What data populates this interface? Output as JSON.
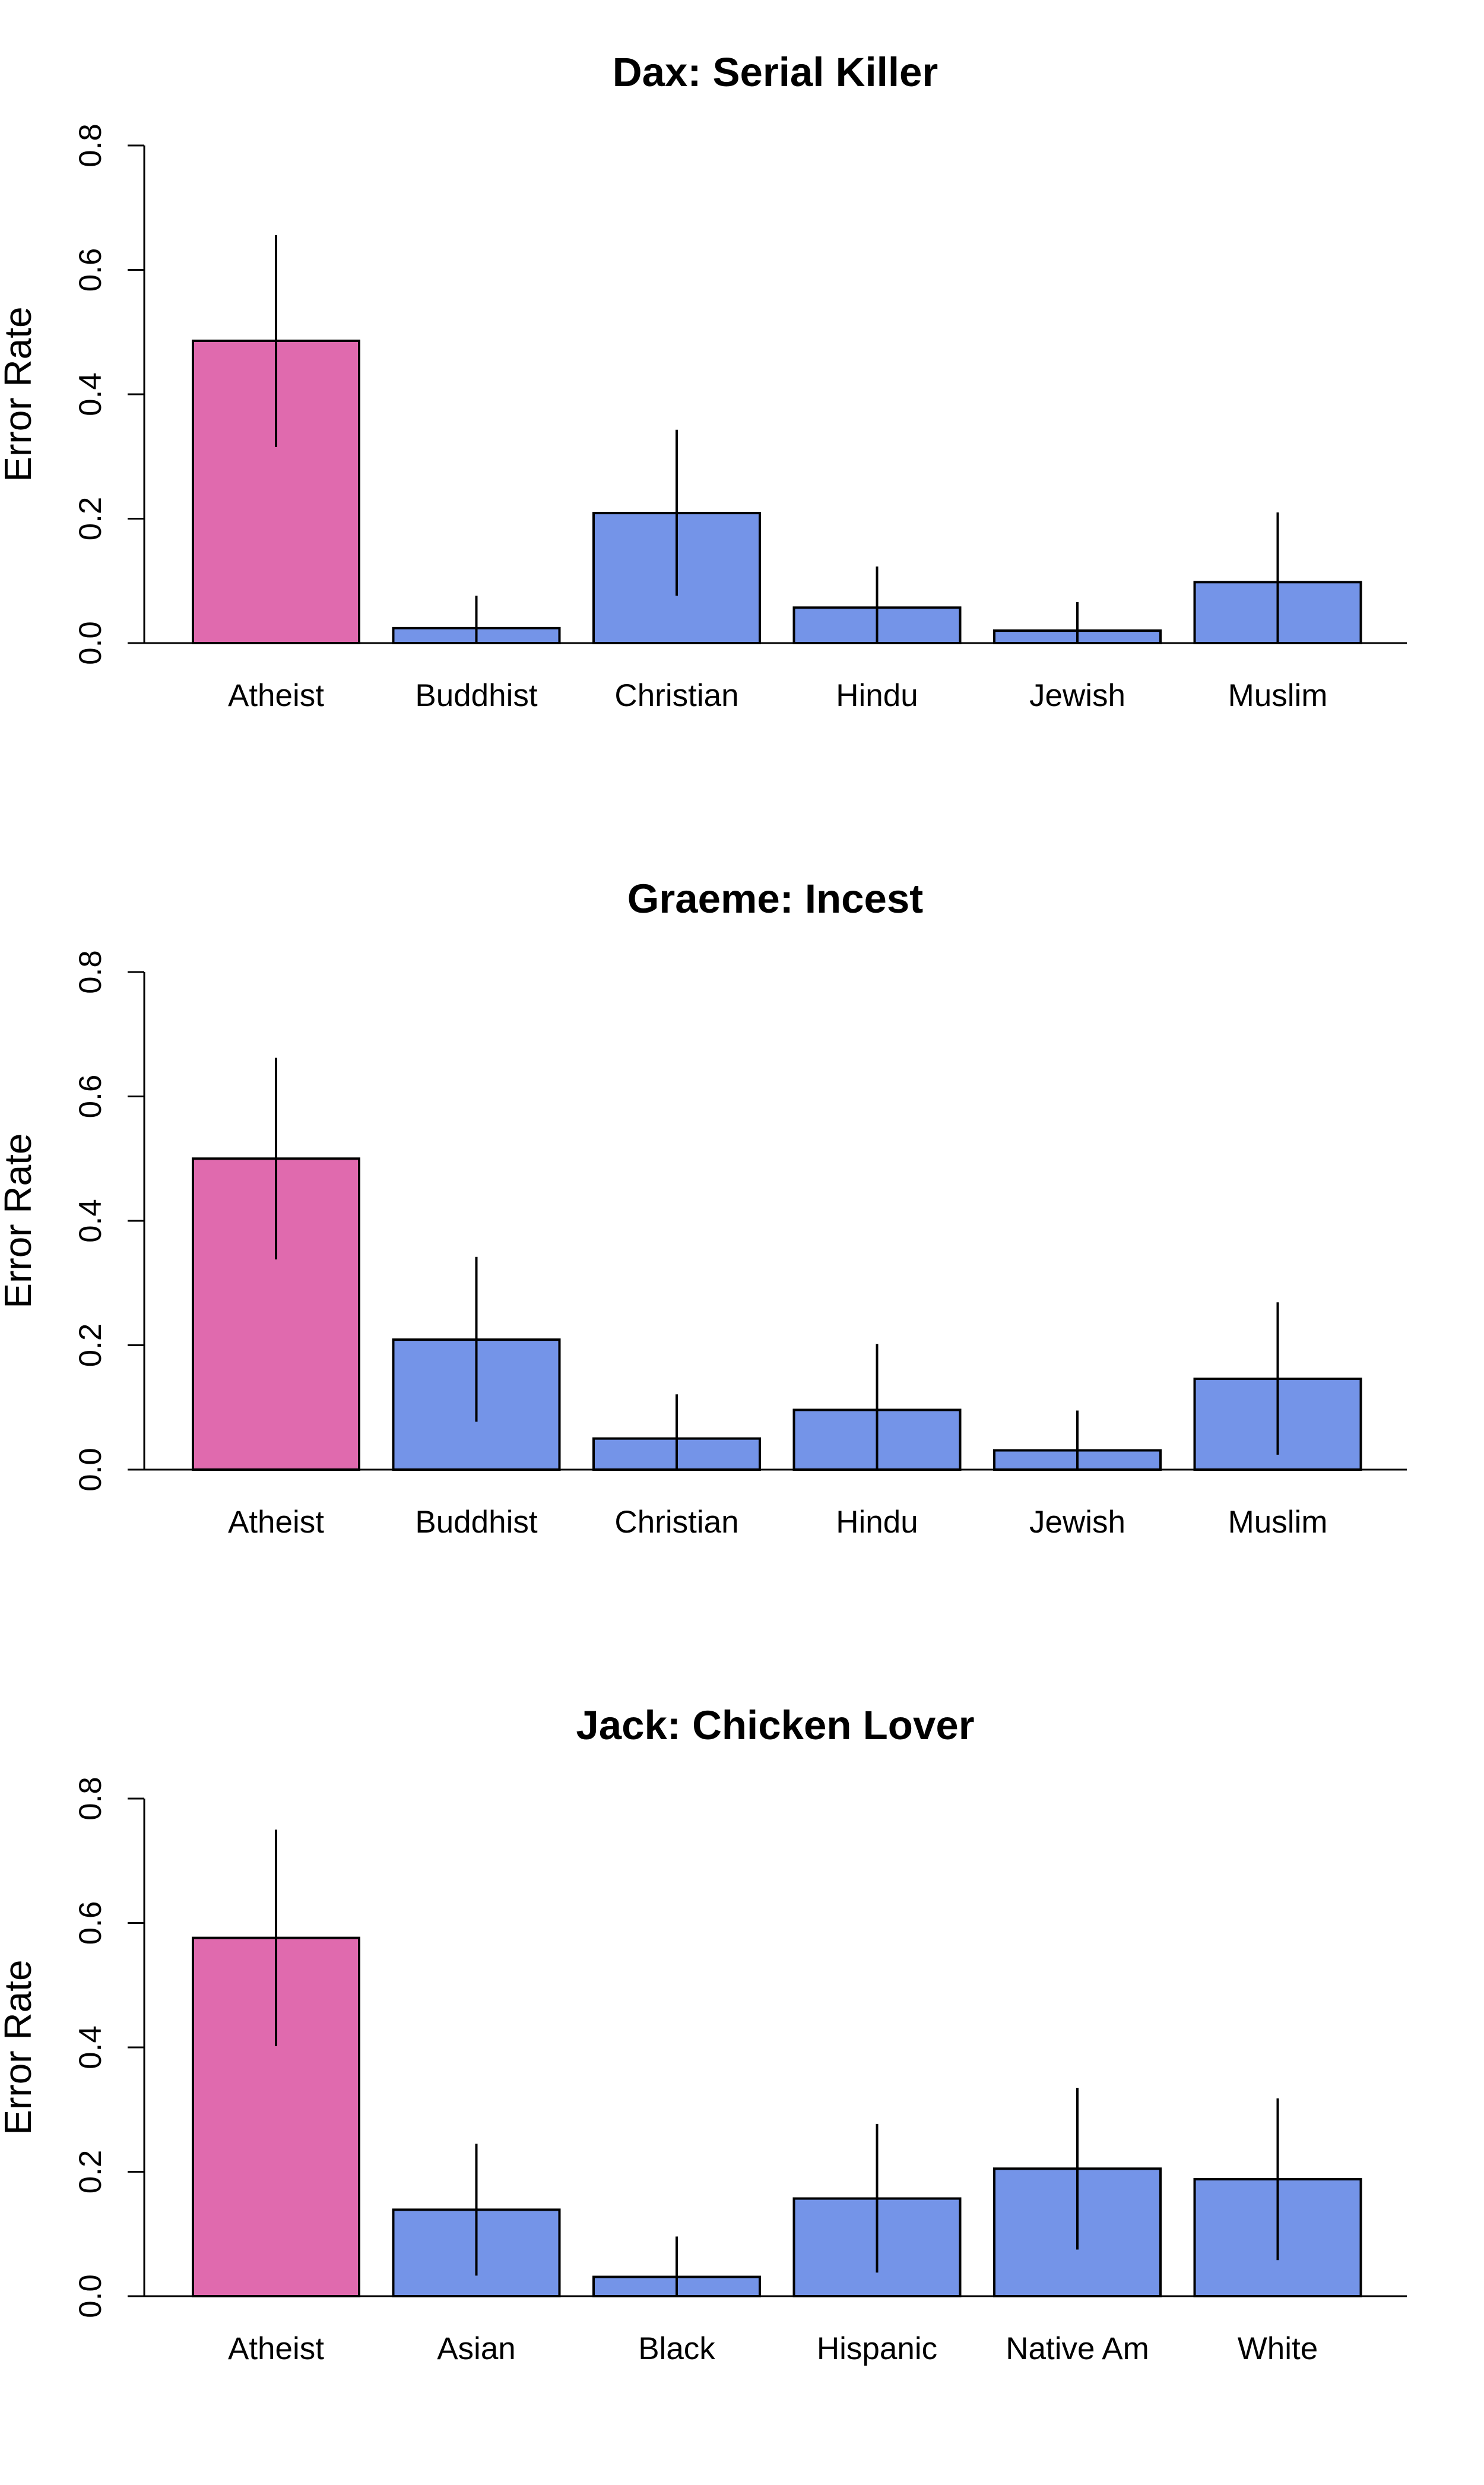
{
  "colors": {
    "highlight": "#E06AAE",
    "default": "#7494E8",
    "stroke": "#000000",
    "background": "#FFFFFF"
  },
  "chart_data": [
    {
      "type": "bar",
      "title": "Dax: Serial Killer",
      "xlabel": "",
      "ylabel": "Error Rate",
      "ylim": [
        0,
        0.8
      ],
      "yticks": [
        0.0,
        0.2,
        0.4,
        0.6,
        0.8
      ],
      "ytick_labels": [
        "0.0",
        "0.2",
        "0.4",
        "0.6",
        "0.8"
      ],
      "categories": [
        "Atheist",
        "Buddhist",
        "Christian",
        "Hindu",
        "Jewish",
        "Muslim"
      ],
      "values": [
        0.486,
        0.024,
        0.209,
        0.057,
        0.02,
        0.098
      ],
      "error_low": [
        0.315,
        0.0,
        0.076,
        0.0,
        0.0,
        0.0
      ],
      "error_high": [
        0.656,
        0.076,
        0.343,
        0.123,
        0.066,
        0.21
      ],
      "highlight": [
        "Atheist"
      ]
    },
    {
      "type": "bar",
      "title": "Graeme: Incest",
      "xlabel": "",
      "ylabel": "Error Rate",
      "ylim": [
        0,
        0.8
      ],
      "yticks": [
        0.0,
        0.2,
        0.4,
        0.6,
        0.8
      ],
      "ytick_labels": [
        "0.0",
        "0.2",
        "0.4",
        "0.6",
        "0.8"
      ],
      "categories": [
        "Atheist",
        "Buddhist",
        "Christian",
        "Hindu",
        "Jewish",
        "Muslim"
      ],
      "values": [
        0.5,
        0.209,
        0.05,
        0.096,
        0.031,
        0.146
      ],
      "error_low": [
        0.338,
        0.077,
        0.0,
        0.0,
        0.0,
        0.024
      ],
      "error_high": [
        0.662,
        0.342,
        0.121,
        0.202,
        0.095,
        0.269
      ],
      "highlight": [
        "Atheist"
      ]
    },
    {
      "type": "bar",
      "title": "Jack: Chicken Lover",
      "xlabel": "",
      "ylabel": "Error Rate",
      "ylim": [
        0,
        0.8
      ],
      "yticks": [
        0.0,
        0.2,
        0.4,
        0.6,
        0.8
      ],
      "ytick_labels": [
        "0.0",
        "0.2",
        "0.4",
        "0.6",
        "0.8"
      ],
      "categories": [
        "Atheist",
        "Asian",
        "Black",
        "Hispanic",
        "Native Am",
        "White"
      ],
      "values": [
        0.576,
        0.139,
        0.031,
        0.157,
        0.205,
        0.188
      ],
      "error_low": [
        0.402,
        0.033,
        0.0,
        0.038,
        0.075,
        0.058
      ],
      "error_high": [
        0.75,
        0.245,
        0.096,
        0.277,
        0.335,
        0.318
      ],
      "highlight": [
        "Atheist"
      ]
    }
  ]
}
